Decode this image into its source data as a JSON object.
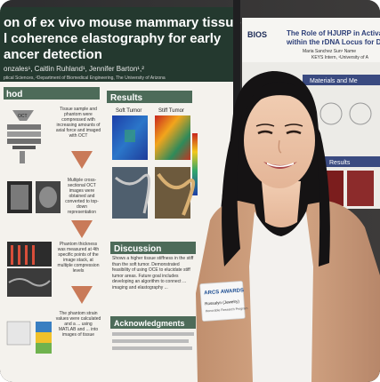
{
  "poster_left": {
    "title_line1": "on of ex vivo mouse mammary tissue",
    "title_line2": "l coherence elastography for early",
    "title_line3": "ancer detection",
    "authors": "onzales¹, Caitlin Ruhland¹, Jennifer Barton¹,²",
    "affiliation": "ptical Sciences, ²Department of Biomedical Engineering, The University of Arizona",
    "method_heading": "hod",
    "results_heading": "Results",
    "soft_tumor_label": "Soft Tumor",
    "stiff_tumor_label": "Stiff Tumor",
    "step1_text": "Tissue sample and phantom were compressed with increasing amounts of axial force and imaged with OCT",
    "step2_text": "Multiple cross-sectional OCT images were obtained and converted to top-down representation",
    "step3_text": "Phantom thickness was measured at 4th specific points of the image stack, at multiple compression levels",
    "step4_text": "The phantom strain values were calculated and a ... using MATLAB and ... into images of tissue",
    "oct_label": "OCT",
    "discussion_heading": "Discussion",
    "discussion_text": "Shows a higher tissue stiffness in the stiff than the soft tumor. Demonstrated feasibility of using OCE to elucidate stiff tumor areas. Future goal includes developing an algorithm to connect ... imaging and elastography ...",
    "acknowledgments_heading": "Acknowledgments"
  },
  "poster_right": {
    "bios_logo": "BIOS",
    "title_line1": "The Role of HJURP in Activating Homologous",
    "title_line2": "within the rDNA Locus for DNA Integrit",
    "authors": "Maria Sanchez Sun¹ Name",
    "affiliation": "KEYS Intern, ¹University of A",
    "materials_heading": "Materials and Me",
    "results_heading": "Results"
  },
  "badge": {
    "logo": "ARCS AWARDS",
    "name": "Rossalyn (Jewelry)",
    "subtitle": "Honorable Research Program"
  }
}
